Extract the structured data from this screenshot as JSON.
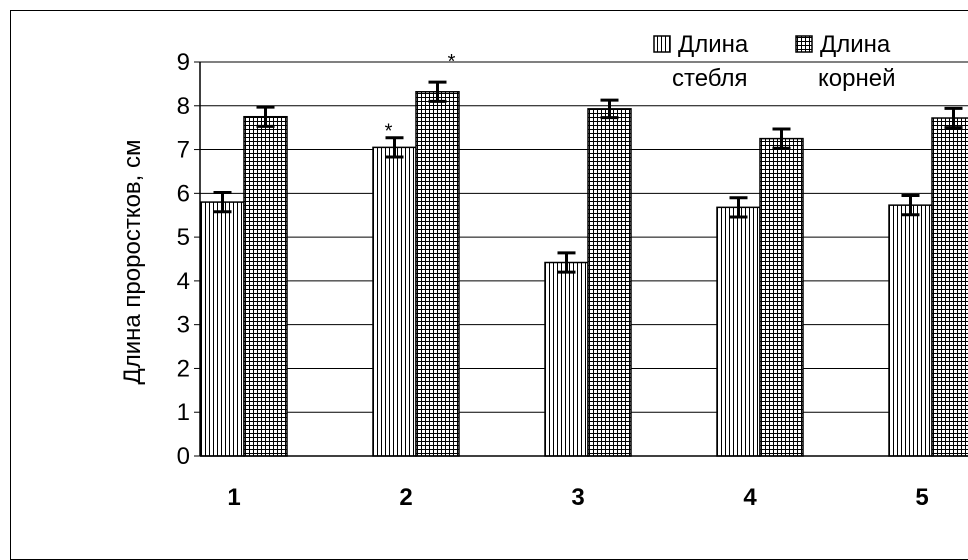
{
  "chart_data": {
    "type": "bar",
    "categories": [
      "1",
      "2",
      "3",
      "4",
      "5"
    ],
    "series": [
      {
        "name_line1": "Длина",
        "name_line2": "стебля",
        "values": [
          5.8,
          7.05,
          4.42,
          5.68,
          5.73
        ],
        "errors": [
          0.22,
          0.22,
          0.22,
          0.22,
          0.22
        ],
        "markers": [
          "",
          "*",
          "",
          "",
          ""
        ]
      },
      {
        "name_line1": "Длина",
        "name_line2": "корней",
        "values": [
          7.75,
          8.32,
          7.93,
          7.25,
          7.72
        ],
        "errors": [
          0.22,
          0.22,
          0.2,
          0.22,
          0.22
        ],
        "markers": [
          "",
          "*",
          "",
          "",
          ""
        ]
      }
    ],
    "ylabel": "Длина проростков, см",
    "ylim": [
      0,
      9
    ],
    "yticks": [
      "0",
      "1",
      "2",
      "3",
      "4",
      "5",
      "6",
      "7",
      "8",
      "9"
    ],
    "grid": true,
    "legend": "top-right"
  }
}
